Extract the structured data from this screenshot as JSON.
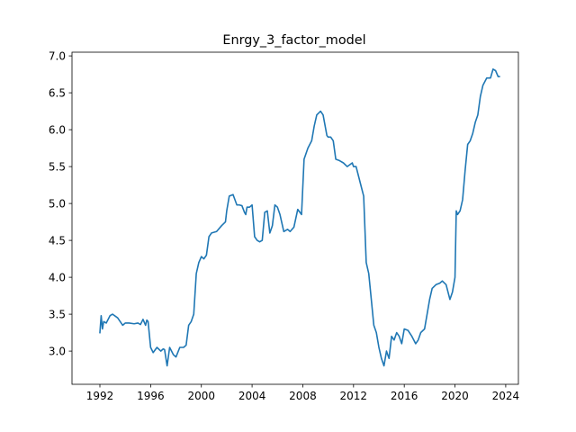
{
  "chart_data": {
    "type": "line",
    "title": "Enrgy_3_factor_model",
    "xlabel": "",
    "ylabel": "",
    "xlim": [
      1989.8,
      2025.0
    ],
    "ylim": [
      2.55,
      7.05
    ],
    "grid": false,
    "x_ticks": [
      1992,
      1996,
      2000,
      2004,
      2008,
      2012,
      2016,
      2020,
      2024
    ],
    "y_ticks": [
      3.0,
      3.5,
      4.0,
      4.5,
      5.0,
      5.5,
      6.0,
      6.5,
      7.0
    ],
    "y_tick_labels": [
      "3.0",
      "3.5",
      "4.0",
      "4.5",
      "5.0",
      "5.5",
      "6.0",
      "6.5",
      "7.0"
    ],
    "series": [
      {
        "color": "#1f77b4",
        "x": [
          1992.0,
          1992.1,
          1992.2,
          1992.3,
          1992.5,
          1992.8,
          1993.0,
          1993.4,
          1993.8,
          1994.0,
          1994.3,
          1994.7,
          1995.0,
          1995.2,
          1995.4,
          1995.6,
          1995.7,
          1995.8,
          1996.0,
          1996.2,
          1996.5,
          1996.8,
          1997.0,
          1997.1,
          1997.3,
          1997.5,
          1997.8,
          1998.0,
          1998.3,
          1998.6,
          1998.8,
          1999.0,
          1999.2,
          1999.4,
          1999.6,
          1999.8,
          2000.0,
          2000.2,
          2000.4,
          2000.6,
          2000.8,
          2001.2,
          2001.6,
          2001.9,
          2002.0,
          2002.2,
          2002.5,
          2002.8,
          2003.0,
          2003.2,
          2003.4,
          2003.5,
          2003.6,
          2003.8,
          2004.0,
          2004.2,
          2004.4,
          2004.6,
          2004.8,
          2005.0,
          2005.2,
          2005.4,
          2005.6,
          2005.8,
          2006.0,
          2006.2,
          2006.5,
          2006.8,
          2007.0,
          2007.3,
          2007.6,
          2007.9,
          2008.1,
          2008.4,
          2008.7,
          2008.9,
          2009.1,
          2009.4,
          2009.6,
          2009.9,
          2010.0,
          2010.2,
          2010.4,
          2010.6,
          2010.9,
          2011.2,
          2011.5,
          2011.9,
          2012.0,
          2012.2,
          2012.5,
          2012.8,
          2013.0,
          2013.2,
          2013.4,
          2013.6,
          2013.8,
          2014.0,
          2014.2,
          2014.4,
          2014.6,
          2014.8,
          2014.9,
          2015.0,
          2015.2,
          2015.4,
          2015.6,
          2015.8,
          2016.0,
          2016.3,
          2016.6,
          2016.9,
          2017.1,
          2017.3,
          2017.6,
          2017.8,
          2018.0,
          2018.2,
          2018.5,
          2018.8,
          2019.0,
          2019.3,
          2019.6,
          2019.8,
          2020.0,
          2020.1,
          2020.2,
          2020.4,
          2020.6,
          2020.8,
          2021.0,
          2021.2,
          2021.4,
          2021.6,
          2021.8,
          2022.0,
          2022.2,
          2022.5,
          2022.8,
          2023.0,
          2023.2,
          2023.4,
          2023.5
        ],
        "values": [
          3.25,
          3.48,
          3.3,
          3.4,
          3.38,
          3.48,
          3.5,
          3.45,
          3.35,
          3.38,
          3.38,
          3.37,
          3.38,
          3.36,
          3.43,
          3.35,
          3.42,
          3.4,
          3.05,
          2.98,
          3.05,
          3.0,
          3.03,
          3.02,
          2.8,
          3.05,
          2.95,
          2.92,
          3.05,
          3.05,
          3.08,
          3.35,
          3.4,
          3.5,
          4.05,
          4.2,
          4.28,
          4.25,
          4.3,
          4.55,
          4.6,
          4.62,
          4.7,
          4.75,
          4.9,
          5.1,
          5.12,
          4.98,
          4.98,
          4.97,
          4.88,
          4.85,
          4.95,
          4.95,
          4.98,
          4.55,
          4.5,
          4.48,
          4.5,
          4.88,
          4.9,
          4.6,
          4.7,
          4.98,
          4.95,
          4.85,
          4.62,
          4.65,
          4.62,
          4.68,
          4.92,
          4.85,
          5.6,
          5.75,
          5.85,
          6.05,
          6.2,
          6.25,
          6.2,
          5.92,
          5.9,
          5.9,
          5.85,
          5.6,
          5.58,
          5.55,
          5.5,
          5.55,
          5.5,
          5.5,
          5.3,
          5.1,
          4.2,
          4.05,
          3.7,
          3.35,
          3.25,
          3.05,
          2.9,
          2.8,
          3.0,
          2.9,
          3.05,
          3.2,
          3.15,
          3.25,
          3.2,
          3.1,
          3.3,
          3.28,
          3.2,
          3.1,
          3.15,
          3.25,
          3.3,
          3.5,
          3.7,
          3.85,
          3.9,
          3.92,
          3.95,
          3.9,
          3.7,
          3.8,
          4.0,
          4.9,
          4.85,
          4.9,
          5.05,
          5.45,
          5.8,
          5.85,
          5.95,
          6.1,
          6.2,
          6.45,
          6.6,
          6.7,
          6.7,
          6.82,
          6.8,
          6.72,
          6.72
        ]
      }
    ]
  }
}
